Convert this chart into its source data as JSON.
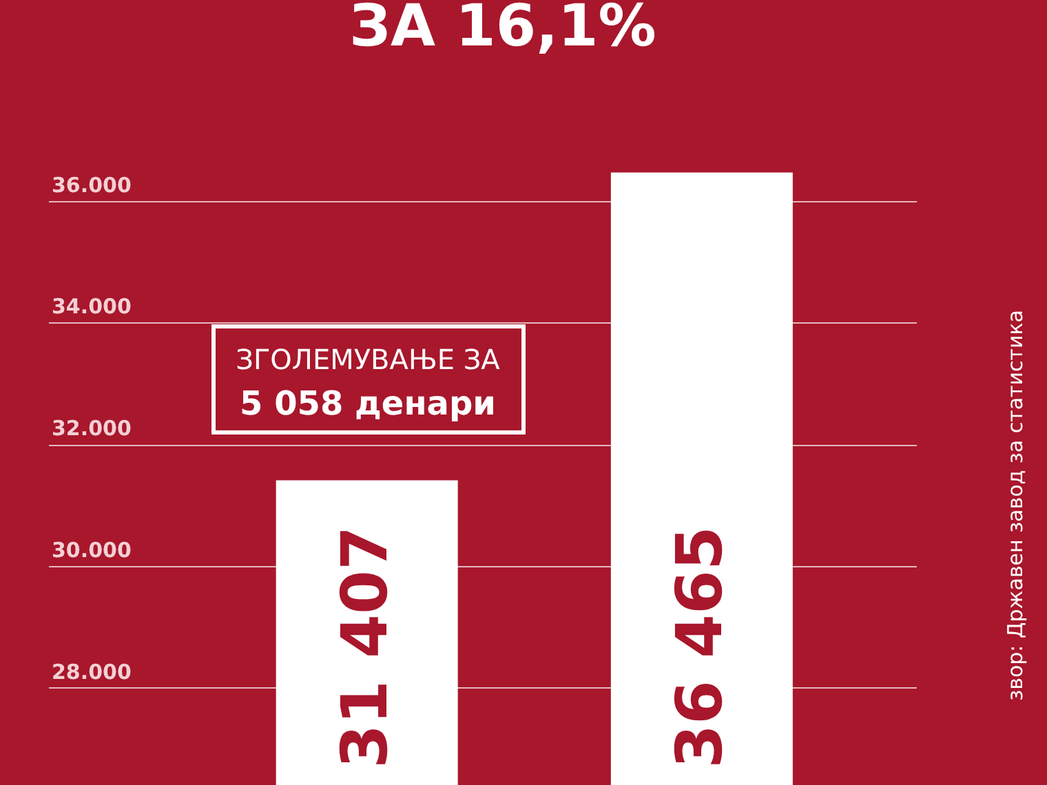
{
  "chart_data": {
    "type": "bar",
    "title": "ЗА 16,1%",
    "categories": [
      null,
      null
    ],
    "series": [
      {
        "color": "#ffffff",
        "values": [
          31407,
          36465
        ],
        "value_labels": [
          "31 407",
          "36 465"
        ]
      }
    ],
    "ylim": [
      26400,
      39300
    ],
    "yticks": [
      {
        "value": 28000,
        "label": "28.000"
      },
      {
        "value": 30000,
        "label": "30.000"
      },
      {
        "value": 32000,
        "label": "32.000"
      },
      {
        "value": 34000,
        "label": "34.000"
      },
      {
        "value": 36000,
        "label": "36.000"
      }
    ],
    "grid": "y",
    "annotations": [
      "ЗГОЛЕМУВАЊЕ ЗА",
      "5 058 денари",
      "звор: Државен завод за статистика"
    ]
  }
}
